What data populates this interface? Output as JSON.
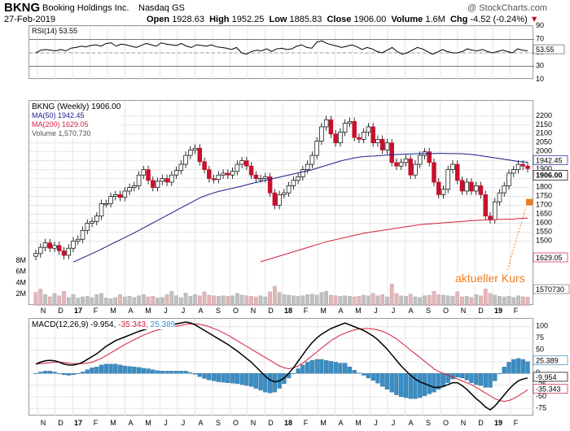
{
  "header": {
    "symbol": "BKNG",
    "company": "Booking Holdings Inc.",
    "exchange": "Nasdaq GS",
    "date": "27-Feb-2019",
    "watermark": "@ StockCharts.com",
    "open_label": "Open",
    "open": "1928.63",
    "high_label": "High",
    "high": "1952.25",
    "low_label": "Low",
    "low": "1885.83",
    "close_label": "Close",
    "close": "1906.00",
    "volume_label": "Volume",
    "volume": "1.6M",
    "chg_label": "Chg",
    "chg": "-4.52 (-0.24%)",
    "chg_marker": "▼"
  },
  "colors": {
    "up": "#ffffff",
    "down": "#c8102e",
    "ma50": "#1a1a8c",
    "ma200": "#d21f3c",
    "rsi": "#000000",
    "macd": "#000000",
    "signal": "#d21f3c",
    "histogram": "#3a8dc4",
    "volume_up": "#c0c0c0",
    "volume_down": "#e8b4b8",
    "annotation": "#f07b1e",
    "grid": "#e6e6e6"
  },
  "chart_data": [
    {
      "type": "line",
      "panel": "rsi",
      "title": "RSI(14) 53.55",
      "y_ticks": [
        90,
        70,
        50,
        30,
        10
      ],
      "y_range": [
        10,
        90
      ],
      "overbought": 70,
      "oversold": 30,
      "last_value_label": "53.55",
      "values": [
        50,
        54,
        55,
        54,
        53,
        55,
        53,
        57,
        58,
        60,
        59,
        61,
        62,
        60,
        64,
        65,
        60,
        63,
        62,
        60,
        58,
        61,
        64,
        62,
        60,
        65,
        63,
        62,
        61,
        64,
        60,
        58,
        62,
        61,
        60,
        62,
        59,
        58,
        57,
        55,
        58,
        50,
        48,
        52,
        54,
        53,
        56,
        52,
        56,
        57,
        55,
        56,
        60,
        62,
        58,
        57,
        66,
        68,
        64,
        62,
        60,
        58,
        60,
        62,
        59,
        55,
        58,
        56,
        52,
        50,
        54,
        58,
        52,
        48,
        50,
        54,
        58,
        56,
        52,
        48,
        51,
        55,
        52,
        50,
        50,
        52,
        56,
        54,
        53,
        55,
        52,
        50,
        52,
        54,
        52,
        50,
        56,
        54,
        53
      ]
    },
    {
      "type": "candlestick",
      "panel": "price",
      "title": "BKNG (Weekly) 1906.00",
      "legend": [
        {
          "name": "BKNG (Weekly) 1906.00",
          "color": "#000000"
        },
        {
          "name": "MA(50) 1942.45",
          "color": "#1a1a8c"
        },
        {
          "name": "MA(200) 1629.05",
          "color": "#d21f3c"
        },
        {
          "name": "Volume 1,570,730",
          "color": "#808080"
        }
      ],
      "x_labels": [
        "N",
        "D",
        "17",
        "F",
        "M",
        "A",
        "M",
        "J",
        "J",
        "A",
        "S",
        "O",
        "N",
        "D",
        "18",
        "F",
        "M",
        "A",
        "M",
        "J",
        "J",
        "A",
        "S",
        "O",
        "N",
        "D",
        "19",
        "F"
      ],
      "y_ticks": [
        2200,
        2150,
        2100,
        2050,
        2000,
        1950,
        1900,
        1850,
        1800,
        1750,
        1700,
        1650,
        1600,
        1550,
        1500
      ],
      "y_range": [
        1420,
        2240
      ],
      "right_labels": [
        "1942.45",
        "1906.00",
        "1629.05",
        "1570730"
      ],
      "annotation": "aktueller Kurs",
      "close": [
        1430,
        1465,
        1490,
        1460,
        1475,
        1445,
        1420,
        1460,
        1500,
        1510,
        1560,
        1600,
        1610,
        1640,
        1710,
        1710,
        1750,
        1760,
        1745,
        1780,
        1800,
        1810,
        1870,
        1900,
        1840,
        1800,
        1835,
        1850,
        1830,
        1870,
        1895,
        1930,
        1980,
        2010,
        2020,
        1945,
        1900,
        1850,
        1845,
        1870,
        1880,
        1870,
        1890,
        1930,
        1950,
        1920,
        1870,
        1850,
        1850,
        1860,
        1770,
        1700,
        1760,
        1770,
        1810,
        1840,
        1860,
        1900,
        1930,
        1980,
        2060,
        2140,
        2180,
        2100,
        2050,
        2110,
        2160,
        2170,
        2080,
        2070,
        2110,
        2140,
        2050,
        2070,
        2010,
        2050,
        1940,
        1920,
        1940,
        1960,
        1870,
        1930,
        1980,
        2000,
        1940,
        1830,
        1760,
        1790,
        1900,
        1930,
        1840,
        1780,
        1830,
        1780,
        1810,
        1760,
        1640,
        1620,
        1720,
        1770,
        1810,
        1880,
        1900,
        1930,
        1920,
        1906
      ],
      "ma50": [
        1300,
        1310,
        1320,
        1330,
        1340,
        1350,
        1360,
        1370,
        1382,
        1394,
        1406,
        1418,
        1430,
        1442,
        1455,
        1468,
        1481,
        1494,
        1507,
        1520,
        1533,
        1546,
        1560,
        1574,
        1588,
        1602,
        1616,
        1630,
        1644,
        1658,
        1672,
        1686,
        1700,
        1714,
        1728,
        1742,
        1752,
        1762,
        1770,
        1778,
        1784,
        1790,
        1796,
        1802,
        1808,
        1815,
        1822,
        1828,
        1834,
        1840,
        1846,
        1852,
        1858,
        1864,
        1870,
        1876,
        1882,
        1888,
        1894,
        1900,
        1908,
        1916,
        1924,
        1932,
        1940,
        1948,
        1955,
        1960,
        1966,
        1970,
        1973,
        1975,
        1976,
        1978,
        1980,
        1982,
        1984,
        1985,
        1986,
        1987,
        1988,
        1989,
        1990,
        1990,
        1990,
        1990,
        1991,
        1991,
        1990,
        1990,
        1990,
        1989,
        1988,
        1985,
        1982,
        1978,
        1974,
        1970,
        1966,
        1962,
        1958,
        1954,
        1950,
        1946,
        1944,
        1942
      ],
      "ma200": [
        1000,
        1008,
        1016,
        1024,
        1032,
        1040,
        1048,
        1056,
        1064,
        1072,
        1080,
        1088,
        1096,
        1104,
        1112,
        1120,
        1128,
        1136,
        1144,
        1152,
        1160,
        1168,
        1176,
        1184,
        1192,
        1200,
        1208,
        1216,
        1224,
        1232,
        1240,
        1248,
        1256,
        1264,
        1272,
        1280,
        1288,
        1296,
        1304,
        1312,
        1320,
        1328,
        1336,
        1344,
        1352,
        1360,
        1368,
        1376,
        1384,
        1392,
        1400,
        1408,
        1416,
        1424,
        1432,
        1440,
        1448,
        1456,
        1464,
        1472,
        1480,
        1488,
        1496,
        1502,
        1508,
        1514,
        1520,
        1526,
        1532,
        1538,
        1544,
        1548,
        1552,
        1556,
        1560,
        1564,
        1568,
        1572,
        1576,
        1580,
        1584,
        1588,
        1592,
        1594,
        1596,
        1598,
        1600,
        1602,
        1604,
        1606,
        1608,
        1610,
        1612,
        1614,
        1616,
        1617,
        1618,
        1619,
        1620,
        1621,
        1622,
        1623,
        1624,
        1626,
        1628,
        1629
      ]
    },
    {
      "type": "bar",
      "panel": "volume",
      "y_ticks": [
        "8M",
        "6M",
        "4M",
        "2M"
      ],
      "y_range": [
        0,
        9
      ],
      "values": [
        2.4,
        3.0,
        2.0,
        1.6,
        2.2,
        1.8,
        2.6,
        1.5,
        2.0,
        1.4,
        1.6,
        1.7,
        1.5,
        2.0,
        2.2,
        1.4,
        1.3,
        1.5,
        2.0,
        1.6,
        1.7,
        1.5,
        1.8,
        2.0,
        1.6,
        1.7,
        1.4,
        1.5,
        2.0,
        2.6,
        1.8,
        1.5,
        2.3,
        1.7,
        2.0,
        1.8,
        2.5,
        1.9,
        1.8,
        1.7,
        1.8,
        1.7,
        1.8,
        2.2,
        1.9,
        1.8,
        1.7,
        1.6,
        1.8,
        1.6,
        2.5,
        3.5,
        2.4,
        2.0,
        1.9,
        1.8,
        1.7,
        1.8,
        2.0,
        2.1,
        1.9,
        2.4,
        2.6,
        1.9,
        1.8,
        1.7,
        1.8,
        1.7,
        1.6,
        1.7,
        1.9,
        1.8,
        2.2,
        1.8,
        2.0,
        1.6,
        3.9,
        2.2,
        1.8,
        1.7,
        2.1,
        1.6,
        1.5,
        1.8,
        1.9,
        2.6,
        2.0,
        1.9,
        1.8,
        1.7,
        2.5,
        1.6,
        1.7,
        1.5,
        2.0,
        1.8,
        3.0,
        2.2,
        1.9,
        1.7,
        1.6,
        1.7,
        1.5,
        1.8,
        1.6,
        1.57
      ],
      "down": [
        1,
        1,
        0,
        1,
        0,
        1,
        1,
        0,
        0,
        0,
        0,
        0,
        0,
        0,
        0,
        0,
        0,
        0,
        1,
        0,
        0,
        0,
        0,
        0,
        1,
        1,
        0,
        0,
        1,
        0,
        0,
        0,
        0,
        0,
        0,
        1,
        1,
        1,
        1,
        0,
        0,
        1,
        0,
        0,
        0,
        1,
        1,
        1,
        0,
        0,
        1,
        1,
        0,
        0,
        0,
        0,
        0,
        0,
        0,
        0,
        0,
        0,
        0,
        1,
        1,
        0,
        0,
        0,
        1,
        1,
        0,
        0,
        1,
        0,
        1,
        0,
        1,
        1,
        0,
        0,
        1,
        0,
        0,
        0,
        1,
        1,
        1,
        0,
        0,
        0,
        1,
        1,
        0,
        1,
        0,
        1,
        1,
        1,
        0,
        0,
        0,
        0,
        0,
        0,
        1,
        1
      ]
    },
    {
      "type": "line",
      "panel": "macd",
      "title": "MACD(12,26,9) -9.954, -35.343, 25.389",
      "title_parts": [
        "MACD(12,26,9)",
        "-9.954,",
        "-35.343,",
        "25.389"
      ],
      "y_ticks": [
        100,
        75,
        50,
        25,
        0,
        -25,
        -50,
        -75
      ],
      "y_range": [
        -85,
        110
      ],
      "right_labels": [
        "25.389",
        "-9.954",
        "-35.343"
      ],
      "x_labels": [
        "N",
        "D",
        "17",
        "F",
        "M",
        "A",
        "M",
        "J",
        "J",
        "A",
        "S",
        "O",
        "N",
        "D",
        "18",
        "F",
        "M",
        "A",
        "M",
        "J",
        "J",
        "A",
        "S",
        "O",
        "N",
        "D",
        "19",
        "F"
      ],
      "macd": [
        20,
        24,
        27,
        28,
        27,
        24,
        20,
        18,
        18,
        20,
        24,
        30,
        36,
        42,
        50,
        58,
        64,
        70,
        74,
        78,
        82,
        86,
        90,
        93,
        96,
        98,
        99,
        100,
        102,
        104,
        106,
        108,
        110,
        108,
        104,
        98,
        92,
        86,
        80,
        74,
        68,
        62,
        55,
        48,
        40,
        32,
        24,
        14,
        4,
        -6,
        -14,
        -18,
        -16,
        -10,
        0,
        12,
        26,
        40,
        54,
        66,
        76,
        84,
        90,
        96,
        100,
        104,
        108,
        104,
        100,
        96,
        92,
        86,
        80,
        72,
        62,
        52,
        40,
        28,
        16,
        6,
        -4,
        -12,
        -18,
        -22,
        -26,
        -30,
        -30,
        -28,
        -24,
        -20,
        -20,
        -26,
        -34,
        -44,
        -54,
        -62,
        -72,
        -78,
        -70,
        -58,
        -46,
        -34,
        -24,
        -16,
        -12,
        -10
      ],
      "signal": [
        20,
        21,
        22,
        23,
        24,
        24,
        23,
        22,
        21,
        21,
        21,
        22,
        24,
        28,
        32,
        38,
        44,
        50,
        56,
        62,
        67,
        72,
        77,
        82,
        86,
        90,
        93,
        95,
        97,
        99,
        101,
        103,
        105,
        106,
        106,
        105,
        103,
        100,
        96,
        92,
        87,
        82,
        76,
        70,
        64,
        58,
        52,
        46,
        40,
        34,
        28,
        22,
        16,
        12,
        10,
        12,
        16,
        22,
        30,
        38,
        46,
        54,
        62,
        70,
        76,
        82,
        86,
        90,
        93,
        95,
        96,
        96,
        95,
        93,
        90,
        86,
        80,
        74,
        66,
        58,
        50,
        42,
        34,
        26,
        18,
        10,
        4,
        0,
        -4,
        -8,
        -12,
        -16,
        -20,
        -24,
        -30,
        -36,
        -42,
        -48,
        -54,
        -58,
        -60,
        -58,
        -54,
        -48,
        -42,
        -35
      ],
      "histogram": [
        0,
        3,
        5,
        5,
        3,
        0,
        -3,
        -4,
        -3,
        -1,
        3,
        8,
        12,
        14,
        18,
        20,
        20,
        20,
        18,
        16,
        15,
        14,
        13,
        11,
        10,
        8,
        6,
        5,
        5,
        5,
        5,
        5,
        5,
        2,
        -2,
        -7,
        -11,
        -14,
        -16,
        -18,
        -19,
        -20,
        -21,
        -22,
        -24,
        -26,
        -28,
        -32,
        -36,
        -40,
        -42,
        -40,
        -32,
        -22,
        -10,
        0,
        10,
        18,
        24,
        28,
        30,
        30,
        28,
        26,
        24,
        22,
        22,
        14,
        7,
        1,
        -4,
        -10,
        -15,
        -21,
        -28,
        -34,
        -40,
        -46,
        -50,
        -52,
        -54,
        -54,
        -52,
        -48,
        -44,
        -40,
        -34,
        -28,
        -20,
        -12,
        -8,
        -10,
        -14,
        -20,
        -24,
        -26,
        -30,
        -30,
        -16,
        0,
        14,
        24,
        30,
        32,
        30,
        25
      ]
    }
  ]
}
